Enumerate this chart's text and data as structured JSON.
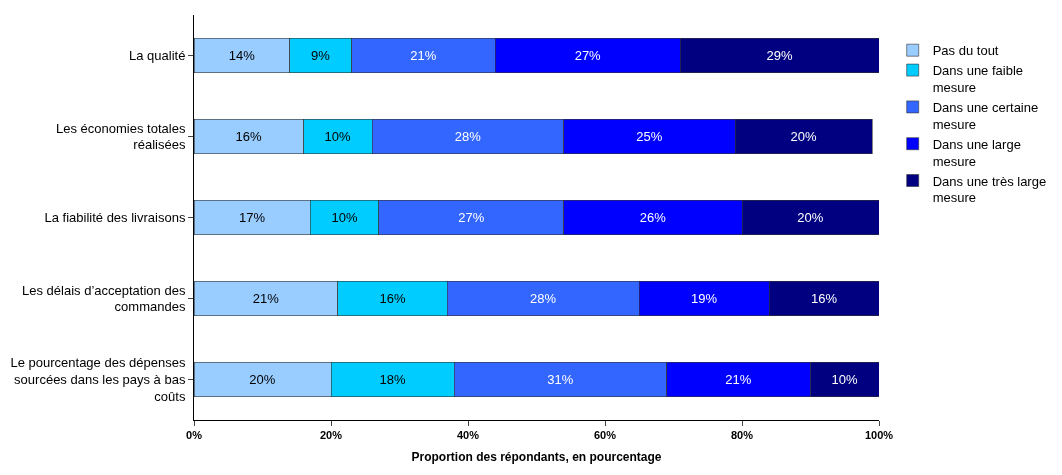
{
  "chart_data": {
    "type": "bar",
    "orientation": "horizontal",
    "stacked": true,
    "data_labels": true,
    "legend": "right",
    "xlabel": "Proportion des répondants, en pourcentage",
    "categories": [
      "La qualité",
      "Les économies totales réalisées",
      "La fiabilité des livraisons",
      "Les délais d’acceptation des commandes",
      "Le pourcentage des dépenses sourcées dans les pays à bas coûts"
    ],
    "xlim": [
      0,
      100
    ],
    "xticks": [
      {
        "value": 0,
        "label": "0%"
      },
      {
        "value": 20,
        "label": "20%"
      },
      {
        "value": 40,
        "label": "40%"
      },
      {
        "value": 60,
        "label": "60%"
      },
      {
        "value": 80,
        "label": "80%"
      },
      {
        "value": 100,
        "label": "100%"
      }
    ],
    "series": [
      {
        "name": "Pas du tout",
        "color": "#99ccff",
        "values": [
          14,
          16,
          17,
          21,
          20
        ],
        "value_labels": [
          "14%",
          "16%",
          "17%",
          "21%",
          "20%"
        ]
      },
      {
        "name": "Dans une faible mesure",
        "color": "#00ccff",
        "values": [
          9,
          10,
          10,
          16,
          18
        ],
        "value_labels": [
          "9%",
          "10%",
          "10%",
          "16%",
          "18%"
        ]
      },
      {
        "name": "Dans une certaine mesure",
        "color": "#3366ff",
        "values": [
          21,
          28,
          27,
          28,
          31
        ],
        "value_labels": [
          "21%",
          "28%",
          "27%",
          "28%",
          "31%"
        ]
      },
      {
        "name": "Dans une large mesure",
        "color": "#0000ff",
        "values": [
          27,
          25,
          26,
          19,
          21
        ],
        "value_labels": [
          "27%",
          "25%",
          "26%",
          "19%",
          "21%"
        ]
      },
      {
        "name": "Dans une très large mesure",
        "color": "#000080",
        "values": [
          29,
          20,
          20,
          16,
          10
        ],
        "value_labels": [
          "29%",
          "20%",
          "20%",
          "16%",
          "10%"
        ]
      }
    ]
  }
}
